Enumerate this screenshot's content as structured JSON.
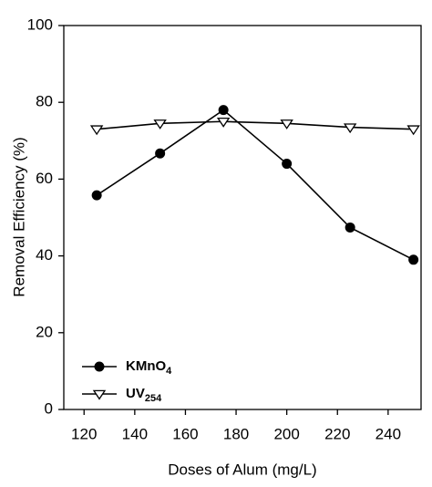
{
  "chart_data": {
    "type": "line",
    "x_label": "Doses of Alum (mg/L)",
    "y_label": "Removal Efficiency (%)",
    "x": [
      125,
      150,
      175,
      200,
      225,
      250
    ],
    "series": [
      {
        "name": "KMnO4",
        "color": "#000000",
        "marker": "circle",
        "values": [
          55.8,
          66.7,
          78,
          64,
          47.4,
          39
        ]
      },
      {
        "name": "UV254",
        "color": "#000000",
        "marker": "triangle-down",
        "values": [
          73,
          74.5,
          75,
          74.5,
          73.5,
          73
        ]
      }
    ],
    "xlim": [
      112,
      253
    ],
    "xticks": [
      120,
      140,
      160,
      180,
      200,
      220,
      240
    ],
    "ylim": [
      0,
      100
    ],
    "yticks": [
      0,
      20,
      40,
      60,
      80,
      100
    ]
  }
}
